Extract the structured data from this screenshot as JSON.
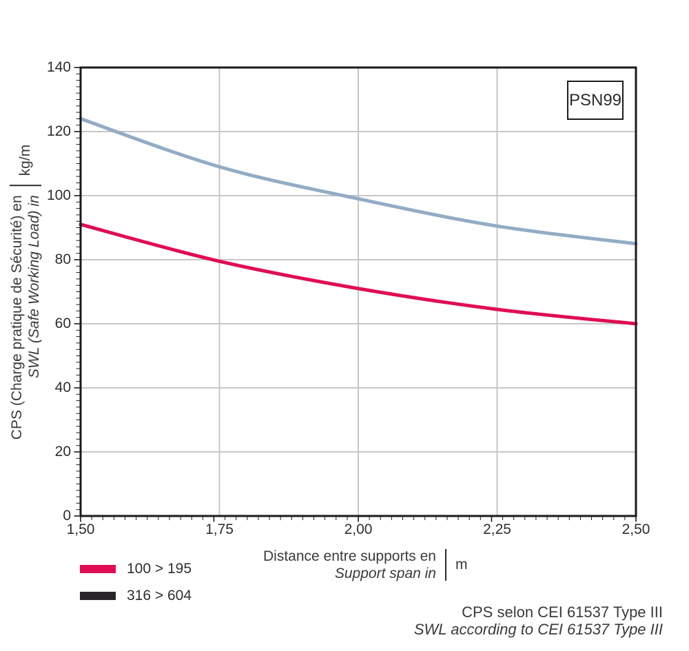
{
  "figure": {
    "series_box_label": "PSN99",
    "footnote": {
      "line1": "CPS selon CEI 61537 Type III",
      "line2": "SWL according to CEI 61537 Type III"
    }
  },
  "chart_data": {
    "type": "line",
    "x": [
      1.5,
      1.75,
      2.0,
      2.25,
      2.5
    ],
    "series": [
      {
        "name": "100 > 195",
        "values": [
          91,
          79.5,
          71,
          64.5,
          60
        ],
        "line_color": "#E00D54",
        "swatch_color": "#E00D54"
      },
      {
        "name": "316 > 604",
        "values": [
          124,
          109,
          99,
          90.5,
          85
        ],
        "line_color": "#92ACC4",
        "swatch_color": "#28262B"
      }
    ],
    "xlabel": {
      "line1": "Distance entre supports en",
      "line2": "Support span in",
      "unit": "m"
    },
    "ylabel": {
      "line1": "CPS (Charge pratique de Sécurité) en",
      "line2": "SWL (Safe Working Load) in",
      "unit": "kg/m"
    },
    "xlim": [
      1.5,
      2.5
    ],
    "ylim": [
      0,
      140
    ],
    "xticks": [
      "1,50",
      "1,75",
      "2,00",
      "2,25",
      "2,50"
    ],
    "xtick_values": [
      1.5,
      1.75,
      2.0,
      2.25,
      2.5
    ],
    "yticks": [
      0,
      20,
      40,
      60,
      80,
      100,
      120,
      140
    ],
    "x_minor_step": 0.02,
    "y_minor_step": 2,
    "grid": true,
    "legend_position": "bottom-left",
    "colors": {
      "grid": "#C6C6C6",
      "axis": "#1A1A1A",
      "text": "#333333"
    }
  }
}
